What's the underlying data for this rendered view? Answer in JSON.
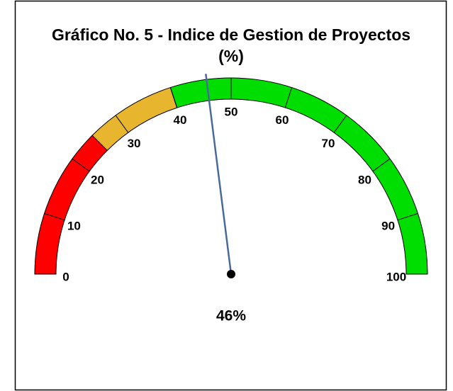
{
  "chart_data": {
    "type": "gauge",
    "title": "Gráfico No. 5 - Indice de Gestion de Proyectos (%)",
    "ylim": [
      0,
      100
    ],
    "yticks": [
      0,
      10,
      20,
      30,
      40,
      50,
      60,
      70,
      80,
      90,
      100
    ],
    "bands": [
      {
        "from": 0,
        "to": 25,
        "color": "#ff0000"
      },
      {
        "from": 25,
        "to": 40,
        "color": "#e8b52e"
      },
      {
        "from": 40,
        "to": 100,
        "color": "#00dd00"
      }
    ],
    "value": 46,
    "value_label": "46%",
    "needle_color": "#4a6a9c"
  }
}
